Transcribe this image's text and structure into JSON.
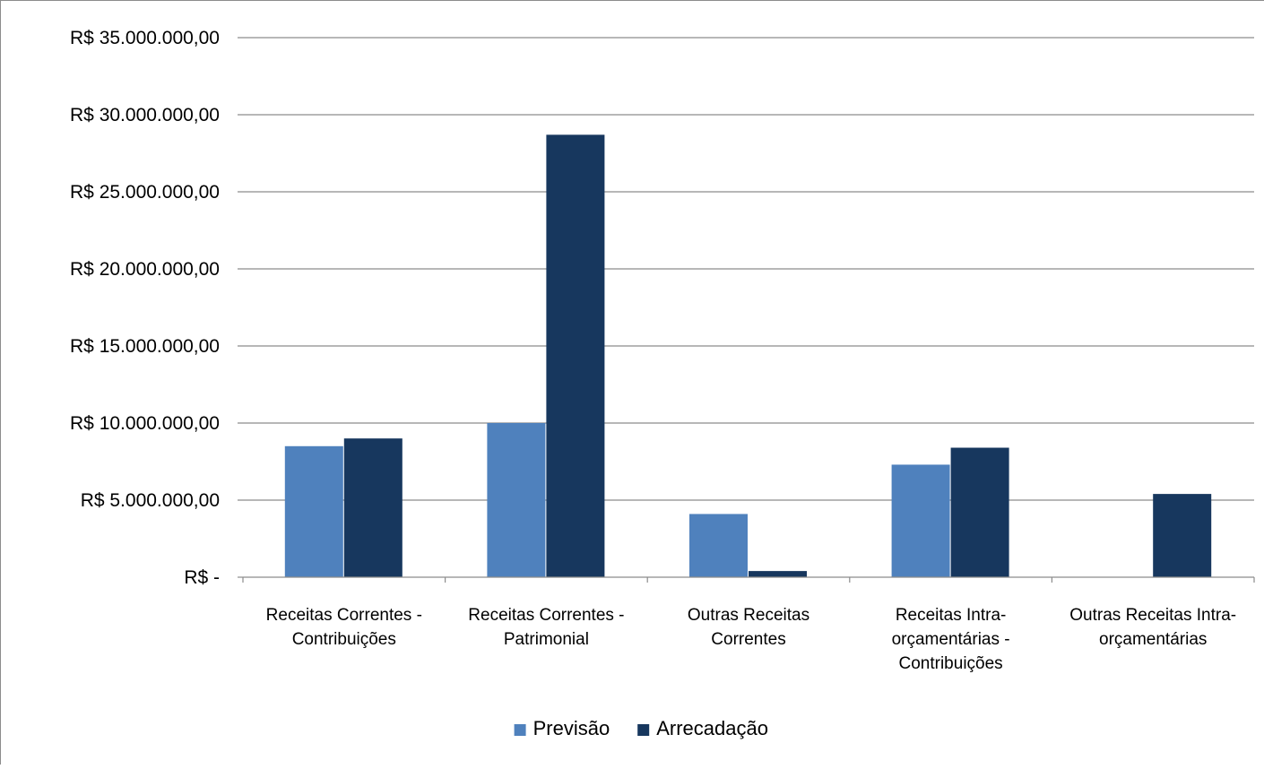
{
  "chart_data": {
    "type": "bar",
    "categories": [
      [
        "Receitas Correntes -",
        "Contribuições"
      ],
      [
        "Receitas Correntes -",
        "Patrimonial"
      ],
      [
        "Outras Receitas",
        "Correntes"
      ],
      [
        "Receitas Intra-",
        "orçamentárias -",
        "Contribuições"
      ],
      [
        "Outras Receitas Intra-",
        "orçamentárias"
      ]
    ],
    "series": [
      {
        "name": "Previsão",
        "color": "#4f81bd",
        "values": [
          8500000,
          10000000,
          4100000,
          7300000,
          0
        ]
      },
      {
        "name": "Arrecadação",
        "color": "#17375e",
        "values": [
          9000000,
          28700000,
          400000,
          8400000,
          5400000
        ]
      }
    ],
    "ylim": [
      0,
      35000000
    ],
    "yticks": [
      {
        "value": 0,
        "label": "R$ -"
      },
      {
        "value": 5000000,
        "label": "R$ 5.000.000,00"
      },
      {
        "value": 10000000,
        "label": "R$ 10.000.000,00"
      },
      {
        "value": 15000000,
        "label": "R$ 15.000.000,00"
      },
      {
        "value": 20000000,
        "label": "R$ 20.000.000,00"
      },
      {
        "value": 25000000,
        "label": "R$ 25.000.000,00"
      },
      {
        "value": 30000000,
        "label": "R$ 30.000.000,00"
      },
      {
        "value": 35000000,
        "label": "R$ 35.000.000,00"
      }
    ],
    "grid": true,
    "legend_position": "bottom",
    "gridline_color": "#8c8c8c"
  }
}
